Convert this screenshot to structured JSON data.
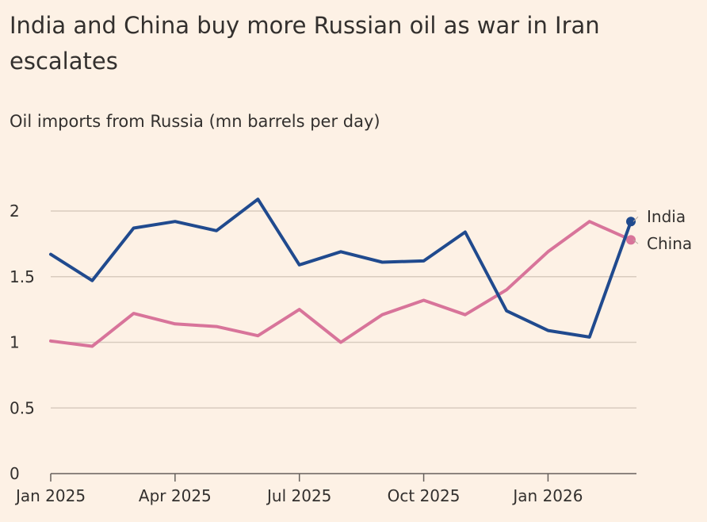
{
  "chart_data": {
    "type": "line",
    "title": "India and China buy more Russian oil as war in Iran escalates",
    "subtitle": "Oil imports from Russia (mn barrels per day)",
    "xlabel": "",
    "ylabel": "",
    "x": [
      "2025-01",
      "2025-02",
      "2025-03",
      "2025-04",
      "2025-05",
      "2025-06",
      "2025-07",
      "2025-08",
      "2025-09",
      "2025-10",
      "2025-11",
      "2025-12",
      "2026-01",
      "2026-02",
      "2026-03"
    ],
    "x_ticks": [
      {
        "index": 0,
        "label": "Jan 2025"
      },
      {
        "index": 3,
        "label": "Apr 2025"
      },
      {
        "index": 6,
        "label": "Jul 2025"
      },
      {
        "index": 9,
        "label": "Oct 2025"
      },
      {
        "index": 12,
        "label": "Jan 2026"
      }
    ],
    "y_ticks": [
      {
        "value": 0,
        "label": "0"
      },
      {
        "value": 0.5,
        "label": "0.5"
      },
      {
        "value": 1,
        "label": "1"
      },
      {
        "value": 1.5,
        "label": "1.5"
      },
      {
        "value": 2,
        "label": "2"
      }
    ],
    "ylim": [
      0,
      2
    ],
    "grid": true,
    "legend": "inline-end-labels",
    "series": [
      {
        "name": "India",
        "color": "#204a8e",
        "values": [
          1.67,
          1.47,
          1.87,
          1.92,
          1.85,
          2.09,
          1.59,
          1.69,
          1.61,
          1.62,
          1.84,
          1.24,
          1.09,
          1.04,
          1.92
        ]
      },
      {
        "name": "China",
        "color": "#d8749a",
        "values": [
          1.01,
          0.97,
          1.22,
          1.14,
          1.12,
          1.05,
          1.25,
          1.0,
          1.21,
          1.32,
          1.21,
          1.4,
          1.69,
          1.92,
          1.78
        ]
      }
    ]
  }
}
